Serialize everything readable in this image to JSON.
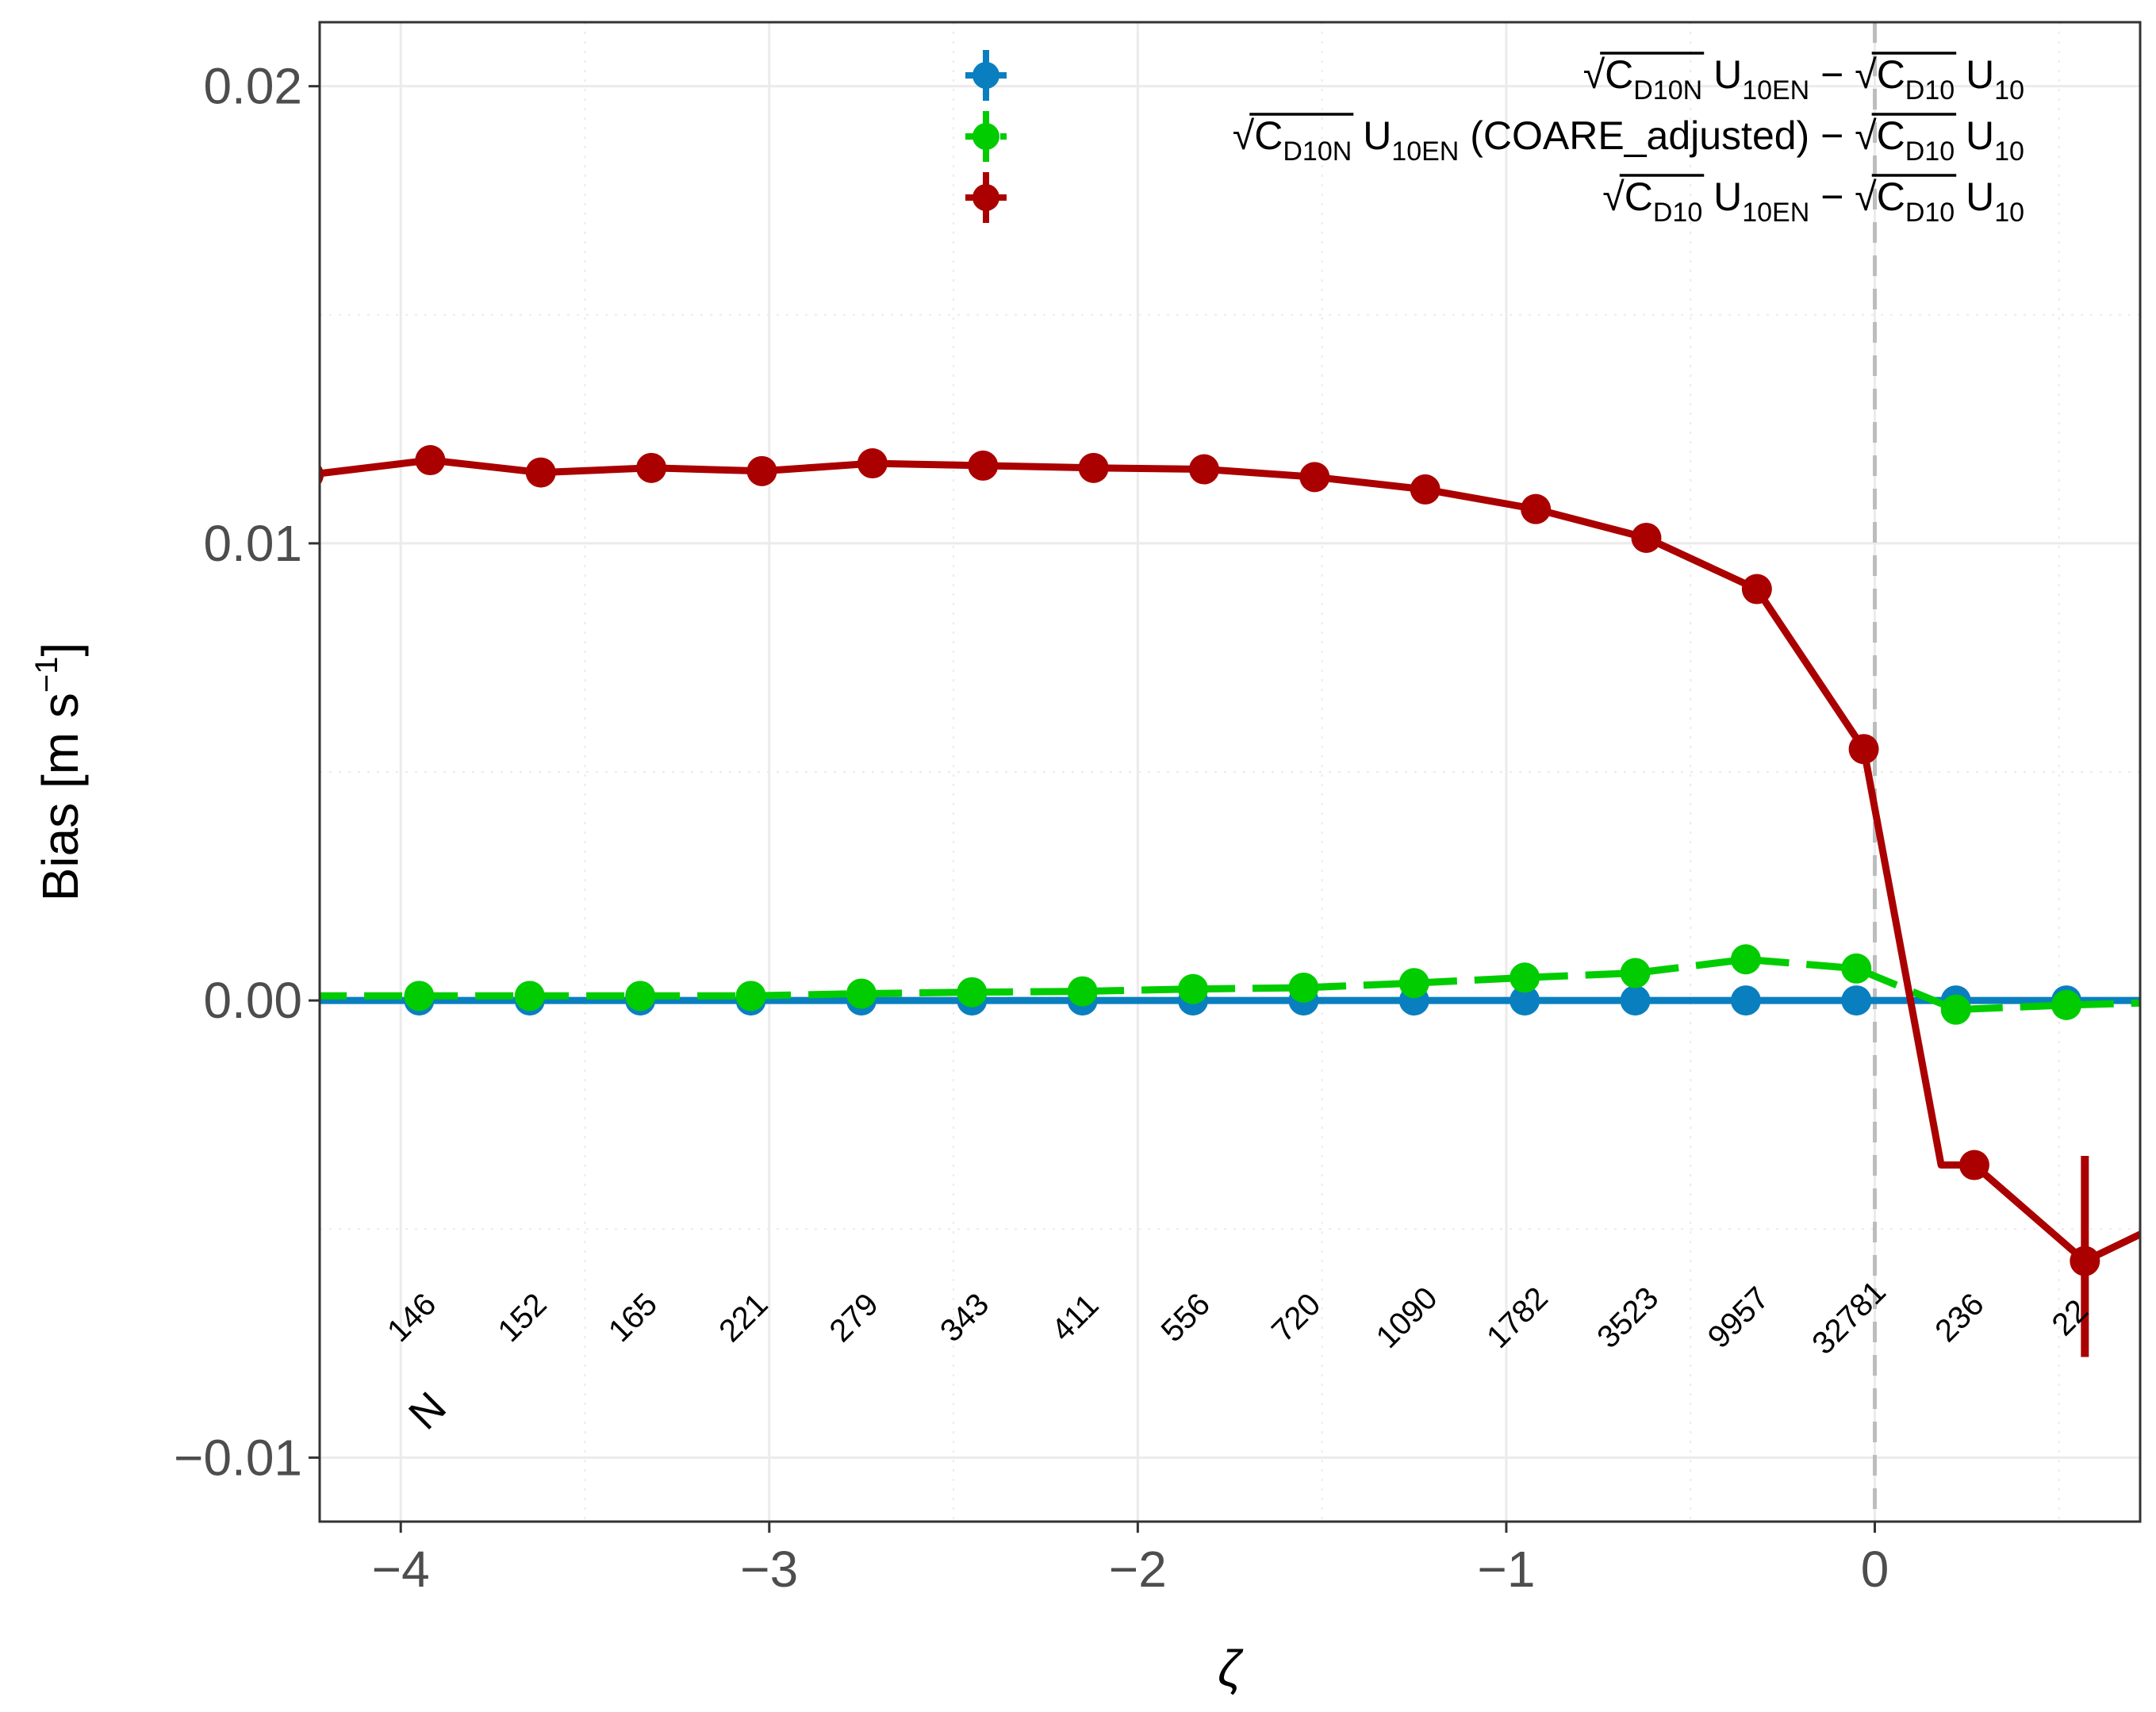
{
  "chart_data": {
    "type": "line",
    "xlabel": "ζ",
    "ylabel": "Bias [m s",
    "ylabel_sup": "−1",
    "ylabel_close": "]",
    "xlim": [
      -4.22,
      0.72
    ],
    "ylim": [
      -0.0114,
      0.0214
    ],
    "x_ticks": [
      -4,
      -3,
      -2,
      -1,
      0
    ],
    "x_tick_labels": [
      "−4",
      "−3",
      "−2",
      "−1",
      "0"
    ],
    "y_ticks": [
      -0.01,
      0.0,
      0.01,
      0.02
    ],
    "y_tick_labels": [
      "−0.01",
      "0.00",
      "0.01",
      "0.02"
    ],
    "grid": true,
    "vline_x": 0,
    "legend_position": "top-right",
    "legend": [
      {
        "color": "#0a7fbf",
        "linestyle": "solid",
        "parts": [
          {
            "t": "√",
            "s": "txt"
          },
          {
            "t": "C",
            "s": "txt",
            "ov": true
          },
          {
            "t": "D10N",
            "s": "sub",
            "ov": true
          },
          {
            "t": " U",
            "s": "txt"
          },
          {
            "t": "10EN",
            "s": "sub"
          },
          {
            "t": " − ",
            "s": "txt"
          },
          {
            "t": "√",
            "s": "txt"
          },
          {
            "t": "C",
            "s": "txt",
            "ov": true
          },
          {
            "t": "D10",
            "s": "sub",
            "ov": true
          },
          {
            "t": " U",
            "s": "txt"
          },
          {
            "t": "10",
            "s": "sub"
          }
        ]
      },
      {
        "color": "#00cc00",
        "linestyle": "dashed",
        "parts": [
          {
            "t": "√",
            "s": "txt"
          },
          {
            "t": "C",
            "s": "txt",
            "ov": true
          },
          {
            "t": "D10N",
            "s": "sub",
            "ov": true
          },
          {
            "t": " U",
            "s": "txt"
          },
          {
            "t": "10EN",
            "s": "sub"
          },
          {
            "t": " (COARE_adjusted) − ",
            "s": "txt"
          },
          {
            "t": "√",
            "s": "txt"
          },
          {
            "t": "C",
            "s": "txt",
            "ov": true
          },
          {
            "t": "D10",
            "s": "sub",
            "ov": true
          },
          {
            "t": " U",
            "s": "txt"
          },
          {
            "t": "10",
            "s": "sub"
          }
        ]
      },
      {
        "color": "#aa0000",
        "linestyle": "solid",
        "parts": [
          {
            "t": "√",
            "s": "txt"
          },
          {
            "t": "C",
            "s": "txt",
            "ov": true
          },
          {
            "t": "D10",
            "s": "sub",
            "ov": true
          },
          {
            "t": " U",
            "s": "txt"
          },
          {
            "t": "10EN",
            "s": "sub"
          },
          {
            "t": " − ",
            "s": "txt"
          },
          {
            "t": "√",
            "s": "txt"
          },
          {
            "t": "C",
            "s": "txt",
            "ov": true
          },
          {
            "t": "D10",
            "s": "sub",
            "ov": true
          },
          {
            "t": " U",
            "s": "txt"
          },
          {
            "t": "10",
            "s": "sub"
          }
        ]
      }
    ],
    "series": [
      {
        "color": "#0a7fbf",
        "linestyle": "solid",
        "x": [
          -4.25,
          -3.95,
          -3.65,
          -3.35,
          -3.05,
          -2.75,
          -2.45,
          -2.15,
          -1.85,
          -1.55,
          -1.25,
          -0.95,
          -0.65,
          -0.35,
          -0.05,
          0.22,
          0.52,
          0.75
        ],
        "y": [
          0.0,
          0.0,
          0.0,
          0.0,
          0.0,
          0.0,
          0.0,
          0.0,
          0.0,
          0.0,
          0.0,
          0.0,
          0.0,
          0.0,
          0.0,
          0.0,
          0.0,
          0.0
        ],
        "markers": [
          false,
          true,
          true,
          true,
          true,
          true,
          true,
          true,
          true,
          true,
          true,
          true,
          true,
          true,
          true,
          true,
          true,
          false
        ]
      },
      {
        "color": "#00cc00",
        "linestyle": "dashed",
        "x": [
          -4.25,
          -3.95,
          -3.65,
          -3.35,
          -3.05,
          -2.75,
          -2.45,
          -2.15,
          -1.85,
          -1.55,
          -1.25,
          -0.95,
          -0.65,
          -0.35,
          -0.05,
          0.22,
          0.52,
          0.75
        ],
        "y": [
          0.0001,
          0.0001,
          0.0001,
          0.0001,
          0.0001,
          0.00015,
          0.00018,
          0.0002,
          0.00025,
          0.00028,
          0.00038,
          0.0005,
          0.0006,
          0.0009,
          0.0007,
          -0.0002,
          -0.0001,
          -5e-05
        ],
        "markers": [
          false,
          true,
          true,
          true,
          true,
          true,
          true,
          true,
          true,
          true,
          true,
          true,
          true,
          true,
          true,
          true,
          true,
          false
        ]
      },
      {
        "color": "#aa0000",
        "linestyle": "solid",
        "x": [
          -4.25,
          -3.92,
          -3.62,
          -3.32,
          -3.02,
          -2.72,
          -2.42,
          -2.12,
          -1.82,
          -1.52,
          -1.22,
          -0.92,
          -0.62,
          -0.32,
          -0.03,
          0.18,
          0.27,
          0.57,
          0.75
        ],
        "y": [
          0.0115,
          0.01182,
          0.01155,
          0.01165,
          0.01158,
          0.01175,
          0.0117,
          0.01165,
          0.01162,
          0.01145,
          0.01118,
          0.01075,
          0.01012,
          0.009,
          0.0055,
          -0.0036,
          -0.0036,
          -0.0057,
          -0.005
        ],
        "markers": [
          true,
          true,
          true,
          true,
          true,
          true,
          true,
          true,
          true,
          true,
          true,
          true,
          true,
          true,
          true,
          false,
          true,
          true,
          false
        ],
        "error_bar": {
          "x": 0.57,
          "low": -0.0078,
          "high": -0.0034
        }
      }
    ],
    "count_label_y": -0.0071,
    "count_labels": [
      {
        "x": -3.95,
        "text": "146"
      },
      {
        "x": -3.65,
        "text": "152"
      },
      {
        "x": -3.35,
        "text": "165"
      },
      {
        "x": -3.05,
        "text": "221"
      },
      {
        "x": -2.75,
        "text": "279"
      },
      {
        "x": -2.45,
        "text": "343"
      },
      {
        "x": -2.15,
        "text": "411"
      },
      {
        "x": -1.85,
        "text": "556"
      },
      {
        "x": -1.55,
        "text": "720"
      },
      {
        "x": -1.25,
        "text": "1090"
      },
      {
        "x": -0.95,
        "text": "1782"
      },
      {
        "x": -0.65,
        "text": "3523"
      },
      {
        "x": -0.35,
        "text": "9957"
      },
      {
        "x": -0.05,
        "text": "32781"
      },
      {
        "x": 0.25,
        "text": "236"
      },
      {
        "x": 0.55,
        "text": "22"
      }
    ],
    "n_label": {
      "x": -3.9,
      "y": -0.0092,
      "text": "N"
    }
  }
}
